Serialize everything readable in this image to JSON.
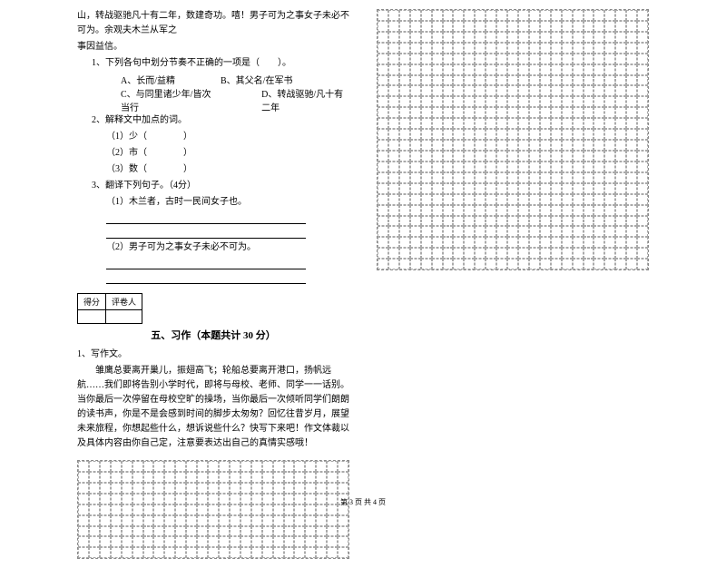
{
  "passage": {
    "line1": "山，转战驱驰凡十有二年，数建奇功。嘻！男子可为之事女子未必不可为。余观夫木兰从军之",
    "line2": "事因益信。"
  },
  "questions": {
    "q1": {
      "stem": "1、下列各句中划分节奏不正确的一项是（　　）。",
      "optA": "A、长而/益精",
      "optB": "B、其父名/在军书",
      "optC": "C、与同里诸少年/皆次当行",
      "optD": "D、转战驱驰/凡十有二年"
    },
    "q2": {
      "stem": "2、解释文中加点的词。",
      "item1": "（1）少（　　　　）",
      "item2": "（2）市（　　　　）",
      "item3": "（3）数（　　　　）"
    },
    "q3": {
      "stem": "3、翻译下列句子。（4分）",
      "item1": "（1）木兰者，古时一民间女子也。",
      "item2": "（2）男子可为之事女子未必不可为。"
    }
  },
  "scoreTable": {
    "col1": "得分",
    "col2": "评卷人"
  },
  "section5": {
    "title": "五、习作（本题共计 30 分）",
    "prompt_label": "1、写作文。",
    "prompt_p1": "　　雏鹰总要离开巢儿，振翅高飞；轮船总要离开港口，扬帆远航……我们即将告别小学时代，即将与母校、老师、同学一一话别。当你最后一次停留在母校空旷的操场，当你最后一次倾听同学们朗朗的读书声，你是不是会感到时间的脚步太匆匆？回忆往昔岁月，展望未来旅程，你想起些什么，想诉说些什么？快写下来吧！作文体裁以及具体内容由你自己定，注意要表达出自己的真情实感哦！"
  },
  "grids": {
    "bottom_rows": 9,
    "bottom_cols": 25,
    "right_rows": 24,
    "right_cols": 25,
    "cell_border_color": "#aaaaaa",
    "grid_border_color": "#888888"
  },
  "footer": "第 3 页 共 4 页",
  "colors": {
    "text": "#000000",
    "background": "#ffffff"
  },
  "fonts": {
    "body_size_pt": 10,
    "title_size_pt": 11
  }
}
